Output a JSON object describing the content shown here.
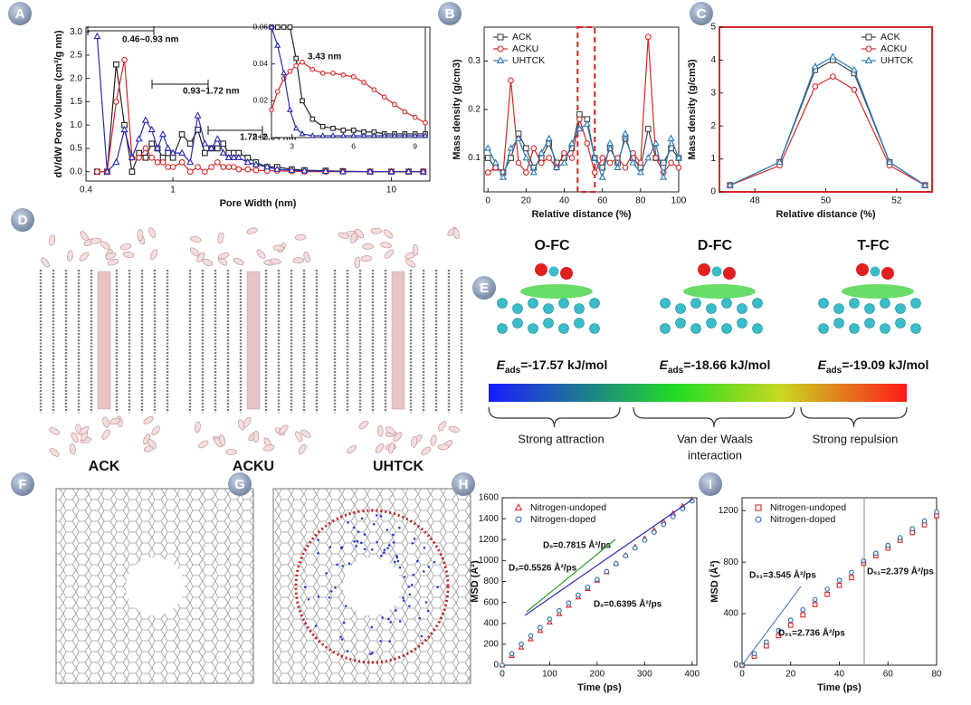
{
  "panel_letters": [
    "A",
    "B",
    "C",
    "D",
    "E",
    "F",
    "G",
    "H",
    "I"
  ],
  "panel_d": {
    "labels": [
      "ACK",
      "ACKU",
      "UHTCK"
    ]
  },
  "panel_e": {
    "titles": [
      "O-FC",
      "D-FC",
      "T-FC"
    ],
    "energies": [
      {
        "symbol": "E",
        "subscript": "ads",
        "value": "=-17.57 kJ/mol"
      },
      {
        "symbol": "E",
        "subscript": "ads",
        "value": "=-18.66 kJ/mol"
      },
      {
        "symbol": "E",
        "subscript": "ads",
        "value": "=-19.09 kJ/mol"
      }
    ],
    "scale_labels": [
      "Strong attraction",
      "Van der Waals",
      "interaction",
      "Strong repulsion"
    ]
  },
  "chart_data": [
    {
      "type": "line",
      "xlabel": "Pore Width (nm)",
      "ylabel": "dV/dW Pore Volume (cm³/g nm)",
      "log_x": true,
      "x": [
        0.45,
        0.5,
        0.55,
        0.6,
        0.65,
        0.7,
        0.75,
        0.8,
        0.85,
        0.9,
        0.95,
        1.0,
        1.1,
        1.2,
        1.3,
        1.4,
        1.5,
        1.6,
        1.7,
        1.8,
        1.9,
        2.0,
        2.2,
        2.4,
        2.7,
        3,
        3.5,
        4,
        5,
        6,
        8,
        10,
        12,
        14
      ],
      "xlim": [
        0.4,
        15
      ],
      "xticks": [
        0.4,
        1,
        10
      ],
      "ylim": [
        -0.2,
        3.1
      ],
      "yticks": [
        {
          "value": 0,
          "label": "0.0"
        },
        0.5,
        {
          "value": 1,
          "label": "1.0"
        },
        1.5,
        {
          "value": 2,
          "label": "2.0"
        },
        2.5,
        {
          "value": 3,
          "label": "3.0"
        }
      ],
      "legend": "upper right",
      "series": [
        {
          "name": "ACK",
          "color": "#222222",
          "marker": "square",
          "values": [
            0,
            0,
            2.3,
            1.0,
            0,
            0.4,
            0.3,
            0.6,
            0.5,
            0.3,
            0.4,
            0.3,
            0.8,
            0.6,
            0.9,
            0.4,
            0.5,
            0.5,
            0.6,
            0.4,
            0.4,
            0.4,
            0.3,
            0.2,
            0.1,
            0.1,
            0.05,
            0.03,
            0.02,
            0.01,
            0,
            0,
            0,
            0
          ]
        },
        {
          "name": "ACKU",
          "color": "#d62728",
          "marker": "circle",
          "values": [
            0,
            0,
            1.5,
            2.4,
            0.3,
            0.3,
            0.5,
            0.3,
            0.2,
            0.2,
            0.1,
            0.1,
            0.2,
            0,
            0.1,
            0,
            0.1,
            0.2,
            0.1,
            0.1,
            0.1,
            0.05,
            0.05,
            0.03,
            0.02,
            0.02,
            0.01,
            0,
            0,
            0,
            0,
            0,
            0,
            0
          ]
        },
        {
          "name": "UHTCK",
          "color": "#2b2bb5",
          "marker": "triangle",
          "values": [
            2.9,
            0,
            0.2,
            0.9,
            0.3,
            0.7,
            1.1,
            0.9,
            0.5,
            0.8,
            0.5,
            0.4,
            0.4,
            0.2,
            1.2,
            0.6,
            0.5,
            0.7,
            0.4,
            0.3,
            0.3,
            0.3,
            0.2,
            0.15,
            0.1,
            0.05,
            0.03,
            0.02,
            0.01,
            0,
            0,
            0,
            0,
            0
          ]
        }
      ],
      "annotations": [
        {
          "text": "0.46~0.93 nm",
          "color": "#111"
        },
        {
          "text": "0.93~1.72 nm",
          "color": "#111"
        },
        {
          "text": "1.72~2.34 nm",
          "color": "#111"
        }
      ]
    },
    {
      "type": "line",
      "inset": true,
      "x": [
        2,
        2.3,
        2.6,
        2.9,
        3.2,
        3.5,
        4,
        4.5,
        5,
        5.5,
        6,
        6.5,
        7,
        7.5,
        8,
        8.5,
        9,
        9.5
      ],
      "xlim": [
        2,
        9.5
      ],
      "xticks": [
        3,
        6,
        9
      ],
      "ylim": [
        0,
        0.06
      ],
      "yticks": [
        {
          "value": 0,
          "label": "0.00"
        },
        {
          "value": 0.02,
          "label": "0.02"
        },
        {
          "value": 0.04,
          "label": "0.04"
        },
        {
          "value": 0.06,
          "label": "0.06"
        }
      ],
      "series": [
        {
          "color": "#222222",
          "marker": "square",
          "values": [
            0.06,
            0.06,
            0.06,
            0.06,
            0.043,
            0.02,
            0.01,
            0.006,
            0.005,
            0.004,
            0.004,
            0.003,
            0.003,
            0.002,
            0.002,
            0.002,
            0.002,
            0.002
          ]
        },
        {
          "color": "#d62728",
          "marker": "circle",
          "values": [
            0.015,
            0.025,
            0.032,
            0.036,
            0.039,
            0.041,
            0.037,
            0.035,
            0.035,
            0.034,
            0.033,
            0.03,
            0.026,
            0.022,
            0.018,
            0.014,
            0.011,
            0.008
          ]
        },
        {
          "color": "#2b2bb5",
          "marker": "triangle",
          "values": [
            0.06,
            0.05,
            0.035,
            0.015,
            0.005,
            0.002,
            0.001,
            0.001,
            0.001,
            0.001,
            0.001,
            0.001,
            0.001,
            0.001,
            0.001,
            0.001,
            0.001,
            0.001
          ]
        }
      ],
      "annotations": [
        {
          "text": "3.43 nm",
          "color": "#111"
        }
      ]
    },
    {
      "type": "line",
      "xlabel": "Relative distance (%)",
      "ylabel": "Mass density (g/cm3)",
      "x": [
        0,
        4,
        8,
        12,
        16,
        20,
        24,
        28,
        32,
        36,
        40,
        44,
        48,
        52,
        56,
        60,
        64,
        68,
        72,
        76,
        80,
        84,
        88,
        92,
        96,
        100
      ],
      "xlim": [
        -2,
        100
      ],
      "xticks": [
        0,
        20,
        40,
        60,
        80,
        100
      ],
      "ylim": [
        0.03,
        0.37
      ],
      "yticks": [
        0.1,
        0.2,
        0.3
      ],
      "highlight_range": [
        47,
        56
      ],
      "legend": "upper left",
      "series": [
        {
          "name": "ACK",
          "color": "#444444",
          "marker": "square",
          "values": [
            0.1,
            0.08,
            0.07,
            0.1,
            0.15,
            0.12,
            0.08,
            0.1,
            0.13,
            0.09,
            0.1,
            0.12,
            0.19,
            0.18,
            0.1,
            0.08,
            0.12,
            0.09,
            0.14,
            0.1,
            0.08,
            0.16,
            0.1,
            0.09,
            0.12,
            0.1
          ]
        },
        {
          "name": "ACKU",
          "color": "#d62728",
          "marker": "circle",
          "values": [
            0.07,
            0.08,
            0.07,
            0.26,
            0.09,
            0.07,
            0.12,
            0.09,
            0.1,
            0.08,
            0.11,
            0.1,
            0.18,
            0.13,
            0.07,
            0.1,
            0.09,
            0.1,
            0.08,
            0.11,
            0.09,
            0.35,
            0.1,
            0.07,
            0.09,
            0.08
          ]
        },
        {
          "name": "UHTCK",
          "color": "#2a7ab8",
          "marker": "triangle",
          "values": [
            0.12,
            0.09,
            0.06,
            0.12,
            0.14,
            0.1,
            0.07,
            0.11,
            0.14,
            0.08,
            0.09,
            0.13,
            0.16,
            0.17,
            0.1,
            0.06,
            0.13,
            0.08,
            0.15,
            0.09,
            0.07,
            0.1,
            0.13,
            0.06,
            0.14,
            0.1
          ]
        }
      ]
    },
    {
      "type": "line",
      "xlabel": "Relative distance (%)",
      "ylabel": "Mass density (g/cm3)",
      "frame_color": "#d62728",
      "x": [
        47.3,
        48.7,
        49.7,
        50.2,
        50.8,
        51.8,
        52.8
      ],
      "xlim": [
        47,
        53
      ],
      "xticks": [
        48,
        50,
        52
      ],
      "ylim": [
        0,
        5
      ],
      "yticks": [
        0,
        1,
        2,
        3,
        4,
        5
      ],
      "legend": "upper right",
      "series": [
        {
          "name": "ACK",
          "color": "#444444",
          "marker": "square",
          "values": [
            0.2,
            0.9,
            3.7,
            4.0,
            3.6,
            0.9,
            0.2
          ]
        },
        {
          "name": "ACKU",
          "color": "#d62728",
          "marker": "circle",
          "values": [
            0.2,
            0.8,
            3.2,
            3.5,
            3.1,
            0.8,
            0.2
          ]
        },
        {
          "name": "UHTCK",
          "color": "#2a7ab8",
          "marker": "triangle",
          "values": [
            0.2,
            0.9,
            3.8,
            4.1,
            3.7,
            0.9,
            0.2
          ]
        }
      ]
    },
    {
      "type": "scatter",
      "xlabel": "Time (ps)",
      "ylabel": "MSD (Å²)",
      "x": [
        0,
        20,
        40,
        60,
        80,
        100,
        120,
        140,
        160,
        180,
        200,
        220,
        240,
        260,
        280,
        300,
        320,
        340,
        360,
        380,
        400
      ],
      "xlim": [
        0,
        410
      ],
      "xticks": [
        0,
        100,
        200,
        300,
        400
      ],
      "ylim": [
        0,
        1600
      ],
      "yticks": [
        0,
        200,
        400,
        600,
        800,
        1000,
        1200,
        1400,
        1600
      ],
      "legend": "upper left",
      "series": [
        {
          "name": "Nitrogen-undoped",
          "color": "#d62728",
          "marker": "triangle",
          "values": [
            0,
            90,
            170,
            250,
            330,
            410,
            490,
            570,
            650,
            730,
            810,
            890,
            970,
            1050,
            1130,
            1210,
            1290,
            1370,
            1450,
            1520,
            1580
          ]
        },
        {
          "name": "Nitrogen-doped",
          "color": "#2a6bb0",
          "marker": "circle",
          "values": [
            0,
            110,
            200,
            280,
            360,
            440,
            520,
            595,
            670,
            745,
            820,
            895,
            970,
            1045,
            1120,
            1195,
            1270,
            1345,
            1420,
            1495,
            1570
          ]
        }
      ],
      "annotations": [
        {
          "text": "Dₛ=0.7815 Å²/ps",
          "color": "#2ca02c"
        },
        {
          "text": "Dₛ=0.5526 Å²/ps",
          "color": "#2b2bb5"
        },
        {
          "text": "Dₛ=0.6395 Å²/ps",
          "color": "#d62728"
        }
      ]
    },
    {
      "type": "scatter",
      "xlabel": "Time (ps)",
      "ylabel": "MSD (Å²)",
      "x": [
        0,
        5,
        10,
        15,
        20,
        25,
        30,
        35,
        40,
        45,
        50,
        55,
        60,
        65,
        70,
        75,
        80
      ],
      "xlim": [
        0,
        80
      ],
      "xticks": [
        0,
        20,
        40,
        60,
        80
      ],
      "ylim": [
        0,
        1300
      ],
      "yticks": [
        0,
        400,
        800,
        1200
      ],
      "legend": "upper left",
      "series": [
        {
          "name": "Nitrogen-undoped",
          "color": "#d62728",
          "marker": "square",
          "values": [
            0,
            70,
            150,
            230,
            310,
            390,
            470,
            550,
            620,
            680,
            790,
            850,
            910,
            970,
            1030,
            1090,
            1160
          ]
        },
        {
          "name": "Nitrogen-doped",
          "color": "#2a6bb0",
          "marker": "circle",
          "values": [
            0,
            90,
            180,
            270,
            350,
            430,
            510,
            590,
            660,
            720,
            810,
            870,
            930,
            990,
            1060,
            1120,
            1190
          ]
        }
      ],
      "annotations": [
        {
          "text": "Dₛ₁=3.545 Å²/ps",
          "color": "#2a6bb0"
        },
        {
          "text": "Dₛ₁=2.736 Å²/ps",
          "color": "#d62728"
        },
        {
          "text": "Dₛ₁=2.379 Å²/ps",
          "color": "#2ca02c"
        }
      ]
    }
  ]
}
